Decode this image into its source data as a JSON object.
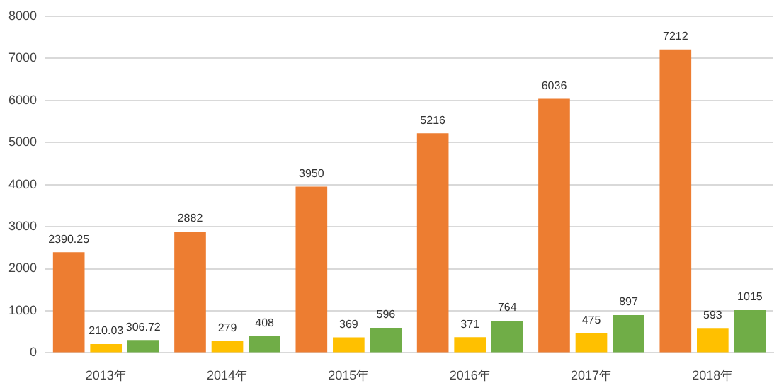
{
  "chart_data": {
    "type": "bar",
    "categories": [
      "2013年",
      "2014年",
      "2015年",
      "2016年",
      "2017年",
      "2018年"
    ],
    "series": [
      {
        "color": "#ed7d31",
        "values": [
          2390.25,
          2882,
          3950,
          5216,
          6036,
          7212
        ]
      },
      {
        "color": "#ffc000",
        "values": [
          210.03,
          279,
          369,
          371,
          475,
          593
        ]
      },
      {
        "color": "#70ad47",
        "values": [
          306.72,
          408,
          596,
          764,
          897,
          1015
        ]
      }
    ],
    "ylim": [
      0,
      8000
    ],
    "yticks": [
      0,
      1000,
      2000,
      3000,
      4000,
      5000,
      6000,
      7000,
      8000
    ],
    "grid": "y",
    "data_labels": true
  }
}
